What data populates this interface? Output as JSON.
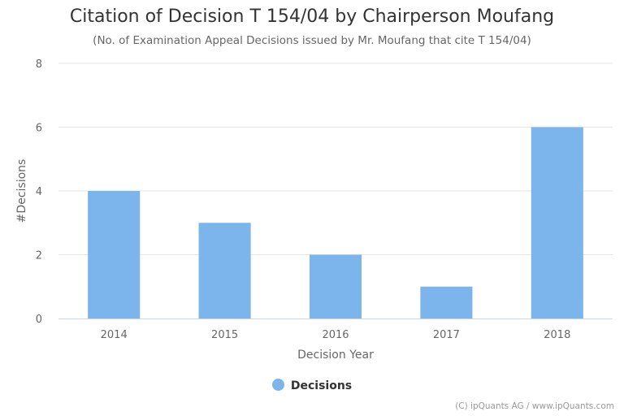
{
  "title": "Citation of Decision T 154/04 by Chairperson Moufang",
  "subtitle": "(No. of Examination Appeal Decisions issued by Mr. Moufang that cite T 154/04)",
  "credits": "(C) ipQuants AG / www.ipQuants.com",
  "colors": {
    "bar": "#7cb5ec",
    "grid": "#e6e6e6",
    "axis": "#ccd6eb"
  },
  "chart_data": {
    "type": "bar",
    "categories": [
      "2014",
      "2015",
      "2016",
      "2017",
      "2018"
    ],
    "series": [
      {
        "name": "Decisions",
        "values": [
          4,
          3,
          2,
          1,
          6
        ]
      }
    ],
    "xlabel": "Decision Year",
    "ylabel": "#Decisions",
    "ylim": [
      0,
      8
    ],
    "yticks": [
      "0",
      "2",
      "4",
      "6",
      "8"
    ],
    "grid": true,
    "legend": "bottom-center"
  }
}
